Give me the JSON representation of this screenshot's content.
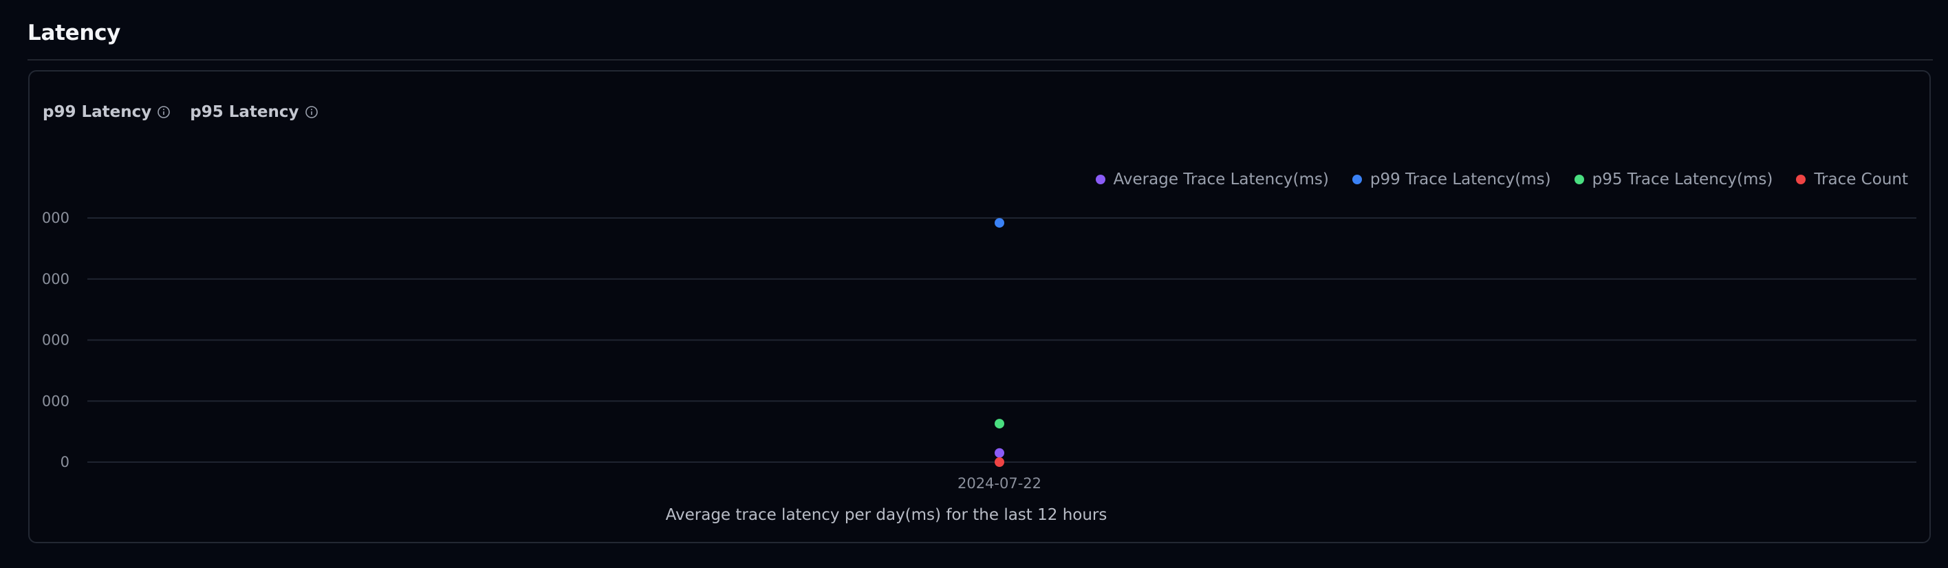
{
  "section": {
    "title": "Latency"
  },
  "tabs": [
    {
      "label": "p99 Latency"
    },
    {
      "label": "p95 Latency"
    }
  ],
  "legend": [
    {
      "label": "Average Trace Latency(ms)",
      "color": "#8b5cf6"
    },
    {
      "label": "p99 Trace Latency(ms)",
      "color": "#3b82f6"
    },
    {
      "label": "p95 Trace Latency(ms)",
      "color": "#4ade80"
    },
    {
      "label": "Trace Count",
      "color": "#ef4444"
    }
  ],
  "chart_data": {
    "type": "scatter",
    "title": "Average trace latency per day(ms) for the last 12 hours",
    "x": [
      "2024-07-22"
    ],
    "y_tick_labels": [
      "0",
      "000",
      "000",
      "000",
      "000"
    ],
    "ylim": [
      0,
      4000
    ],
    "grid": true,
    "legend_position": "top-right",
    "series": [
      {
        "name": "Average Trace Latency(ms)",
        "values": [
          150
        ],
        "color": "#8b5cf6"
      },
      {
        "name": "p99 Trace Latency(ms)",
        "values": [
          3920
        ],
        "color": "#3b82f6"
      },
      {
        "name": "p95 Trace Latency(ms)",
        "values": [
          630
        ],
        "color": "#4ade80"
      },
      {
        "name": "Trace Count",
        "values": [
          0
        ],
        "color": "#ef4444"
      }
    ]
  }
}
